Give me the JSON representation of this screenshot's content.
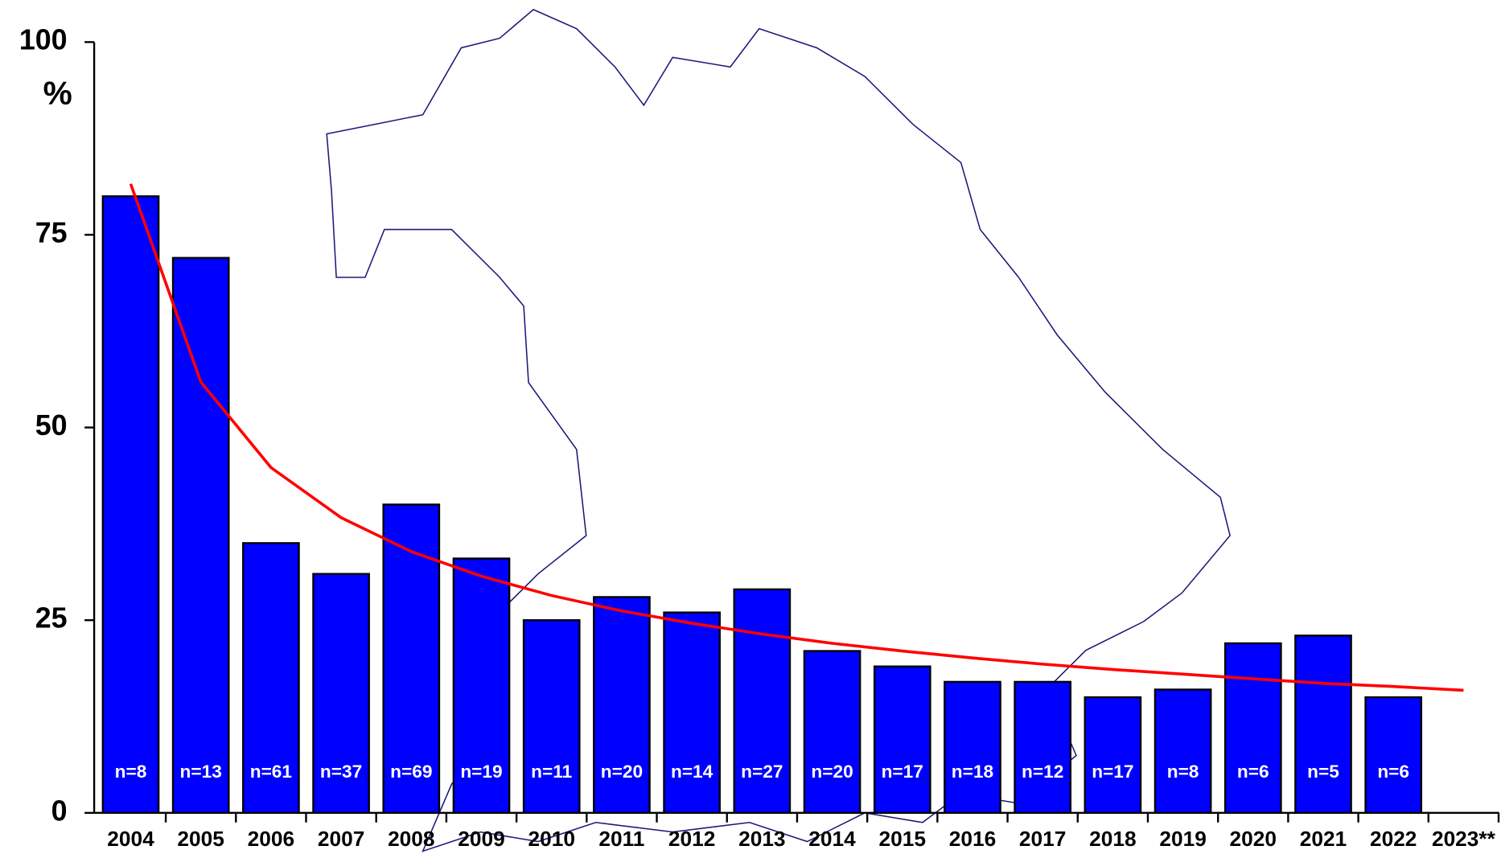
{
  "chart_data": {
    "type": "bar",
    "y_label": "%",
    "categories": [
      "2004",
      "2005",
      "2006",
      "2007",
      "2008",
      "2009",
      "2010",
      "2011",
      "2012",
      "2013",
      "2014",
      "2015",
      "2016",
      "2017",
      "2018",
      "2019",
      "2020",
      "2021",
      "2022",
      "2023**"
    ],
    "values": [
      80,
      72,
      35,
      31,
      40,
      33,
      25,
      28,
      26,
      29,
      21,
      19,
      17,
      17,
      15,
      16,
      22,
      23,
      15,
      null
    ],
    "n_labels": [
      "n=8",
      "n=13",
      "n=61",
      "n=37",
      "n=69",
      "n=19",
      "n=11",
      "n=20",
      "n=14",
      "n=27",
      "n=20",
      "n=17",
      "n=18",
      "n=12",
      "n=17",
      "n=8",
      "n=6",
      "n=5",
      "n=6",
      null
    ],
    "color": "#0000ff",
    "trend": {
      "color": "#ff0000",
      "values": [
        81.6,
        55.9,
        44.8,
        38.3,
        33.9,
        30.7,
        28.2,
        26.2,
        24.6,
        23.2,
        22.0,
        21.0,
        20.1,
        19.3,
        18.6,
        18.0,
        17.4,
        16.8,
        16.4,
        15.9
      ]
    },
    "ylim": [
      0,
      100
    ],
    "yticks": [
      0,
      25,
      50,
      75,
      100
    ],
    "grid": false
  }
}
